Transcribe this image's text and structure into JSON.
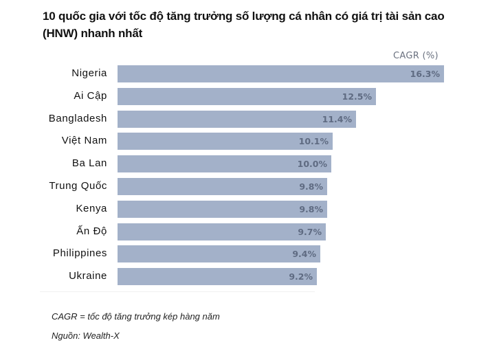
{
  "title": "10 quốc gia với tốc độ tăng trưởng số lượng cá nhân có giá trị tài sản cao (HNW) nhanh nhất",
  "legend": "CAGR (%)",
  "footer": {
    "definition": "CAGR = tốc độ tăng trưởng kép hàng năm",
    "source": "Nguồn: Wealth-X"
  },
  "colors": {
    "bar": "#a3b1c9",
    "value_text": "#5f6b82"
  },
  "chart_data": {
    "type": "bar",
    "orientation": "horizontal",
    "title": "10 quốc gia với tốc độ tăng trưởng số lượng cá nhân có giá trị tài sản cao (HNW) nhanh nhất",
    "xlabel": "CAGR (%)",
    "ylabel": "",
    "categories": [
      "Nigeria",
      "Ai Cập",
      "Bangladesh",
      "Việt Nam",
      "Ba Lan",
      "Trung Quốc",
      "Kenya",
      "Ấn Độ",
      "Philippines",
      "Ukraine"
    ],
    "values": [
      16.3,
      12.5,
      11.4,
      10.1,
      10.0,
      9.8,
      9.8,
      9.7,
      9.4,
      9.2
    ],
    "labels": [
      "16.3%",
      "12.5%",
      "11.4%",
      "10.1%",
      "10.0%",
      "9.8%",
      "9.8%",
      "9.7%",
      "9.4%",
      "9.2%"
    ],
    "grid": false,
    "legend_position": "top-right"
  }
}
